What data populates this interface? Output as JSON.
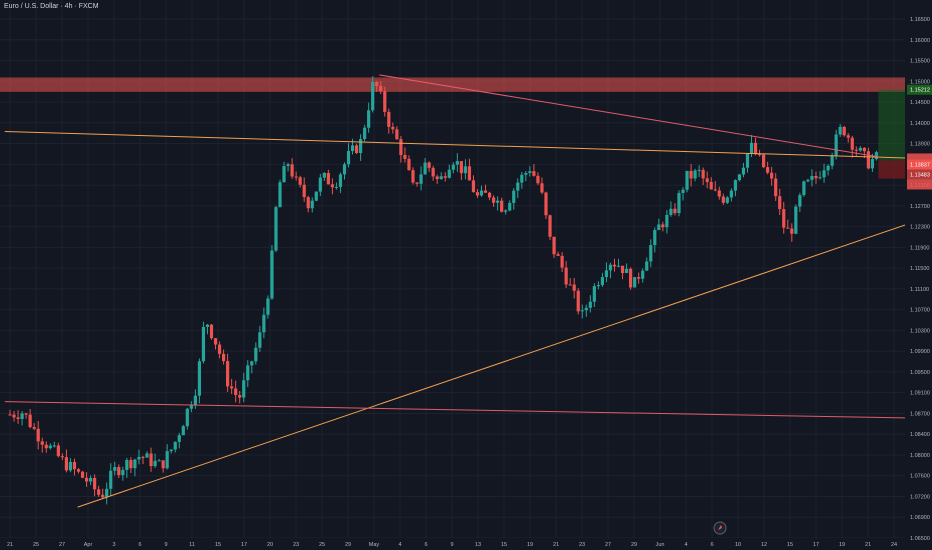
{
  "header": {
    "symbol_title": "Euro / U.S. Dollar · 4h · FXCM"
  },
  "colors": {
    "background": "#131722",
    "up": "#26a69a",
    "down": "#ef5350",
    "grid": "#1e2230",
    "axis_text": "#b2b5be",
    "resistance_zone": "#ef5350",
    "trend_orange": "#f5a051",
    "trend_red": "#e25c66",
    "target_zone": "#1b5e20",
    "stop_zone": "#7f1d1d"
  },
  "price_axis": {
    "ticks": [
      "1.16500",
      "1.16000",
      "1.15500",
      "1.15000",
      "1.14500",
      "1.14000",
      "1.13900",
      "1.13500",
      "1.13100",
      "1.12700",
      "1.12300",
      "1.11900",
      "1.11500",
      "1.11100",
      "1.10700",
      "1.10300",
      "1.09900",
      "1.09500",
      "1.09100",
      "1.08700",
      "1.08400",
      "1.08000",
      "1.07600",
      "1.07200",
      "1.06900",
      "1.06500"
    ],
    "badge_top": "1.15212",
    "badge_current": "1.13837",
    "badge_sub": "1.13483"
  },
  "time_axis": {
    "labels": [
      "21",
      "25",
      "27",
      "Apr",
      "3",
      "6",
      "9",
      "11",
      "15",
      "17",
      "20",
      "23",
      "25",
      "29",
      "May",
      "4",
      "6",
      "9",
      "13",
      "15",
      "19",
      "21",
      "23",
      "27",
      "29",
      "Jun",
      "4",
      "6",
      "10",
      "12",
      "15",
      "17",
      "19",
      "21",
      "24"
    ]
  },
  "chart_data": {
    "type": "candlestick",
    "title": "Euro / U.S. Dollar · 4h · FXCM",
    "ylim": [
      1.065,
      1.168
    ],
    "x_categories": [
      "21",
      "25",
      "27",
      "Apr",
      "3",
      "6",
      "9",
      "11",
      "15",
      "17",
      "20",
      "23",
      "25",
      "29",
      "May",
      "4",
      "6",
      "9",
      "13",
      "15",
      "19",
      "21",
      "23",
      "27",
      "29",
      "Jun",
      "4",
      "6",
      "10",
      "12",
      "15",
      "17",
      "19",
      "21",
      "24"
    ],
    "price_path": [
      [
        0,
        1.089
      ],
      [
        0.5,
        1.0895
      ],
      [
        1,
        1.0855
      ],
      [
        2,
        1.08
      ],
      [
        3,
        1.076
      ],
      [
        3.5,
        1.073
      ],
      [
        4,
        1.078
      ],
      [
        5,
        1.081
      ],
      [
        5.8,
        1.079
      ],
      [
        6.3,
        1.083
      ],
      [
        6.8,
        1.0895
      ],
      [
        7.2,
        1.095
      ],
      [
        7.5,
        1.108
      ],
      [
        8,
        1.102
      ],
      [
        8.4,
        1.095
      ],
      [
        8.8,
        1.092
      ],
      [
        9.2,
        1.098
      ],
      [
        9.6,
        1.104
      ],
      [
        10,
        1.115
      ],
      [
        10.3,
        1.133
      ],
      [
        10.7,
        1.138
      ],
      [
        11,
        1.134
      ],
      [
        11.5,
        1.13
      ],
      [
        12,
        1.135
      ],
      [
        12.5,
        1.134
      ],
      [
        13,
        1.139
      ],
      [
        13.5,
        1.142
      ],
      [
        14,
        1.154
      ],
      [
        14.3,
        1.15
      ],
      [
        14.7,
        1.144
      ],
      [
        15,
        1.141
      ],
      [
        15.5,
        1.133
      ],
      [
        16,
        1.138
      ],
      [
        16.5,
        1.134
      ],
      [
        17,
        1.139
      ],
      [
        17.5,
        1.136
      ],
      [
        18,
        1.131
      ],
      [
        18.5,
        1.132
      ],
      [
        19,
        1.129
      ],
      [
        19.5,
        1.134
      ],
      [
        20,
        1.137
      ],
      [
        20.4,
        1.133
      ],
      [
        20.8,
        1.122
      ],
      [
        21.2,
        1.118
      ],
      [
        21.6,
        1.113
      ],
      [
        22,
        1.108
      ],
      [
        22.5,
        1.114
      ],
      [
        23,
        1.119
      ],
      [
        23.5,
        1.118
      ],
      [
        24,
        1.114
      ],
      [
        24.5,
        1.12
      ],
      [
        25,
        1.126
      ],
      [
        25.5,
        1.128
      ],
      [
        26,
        1.135
      ],
      [
        26.5,
        1.136
      ],
      [
        27,
        1.132
      ],
      [
        27.5,
        1.131
      ],
      [
        28,
        1.136
      ],
      [
        28.5,
        1.141
      ],
      [
        29,
        1.137
      ],
      [
        29.4,
        1.133
      ],
      [
        29.7,
        1.126
      ],
      [
        30,
        1.124
      ],
      [
        30.5,
        1.133
      ],
      [
        31,
        1.135
      ],
      [
        31.5,
        1.139
      ],
      [
        32,
        1.145
      ],
      [
        32.5,
        1.141
      ],
      [
        33,
        1.138
      ],
      [
        33.4,
        1.139
      ]
    ],
    "resistance_zone": {
      "from": 1.1517,
      "to": 1.1545
    },
    "position": {
      "entry": 1.13837,
      "target": 1.15212,
      "stop": 1.13483,
      "start_x": 33.4,
      "end_x": 38.2
    },
    "trendlines": [
      {
        "name": "orange-support",
        "color": "orange",
        "points": [
          [
            2.6,
            1.071
          ],
          [
            38.3,
            1.1325
          ]
        ]
      },
      {
        "name": "orange-horizontal",
        "color": "orange",
        "points": [
          [
            -0.2,
            1.144
          ],
          [
            43.5,
            1.1375
          ]
        ]
      },
      {
        "name": "red-descending",
        "color": "red",
        "points": [
          [
            14.2,
            1.155
          ],
          [
            33.5,
            1.139
          ]
        ]
      },
      {
        "name": "red-lower",
        "color": "red",
        "points": [
          [
            -0.2,
            1.0915
          ],
          [
            43.5,
            1.0875
          ]
        ]
      }
    ]
  }
}
